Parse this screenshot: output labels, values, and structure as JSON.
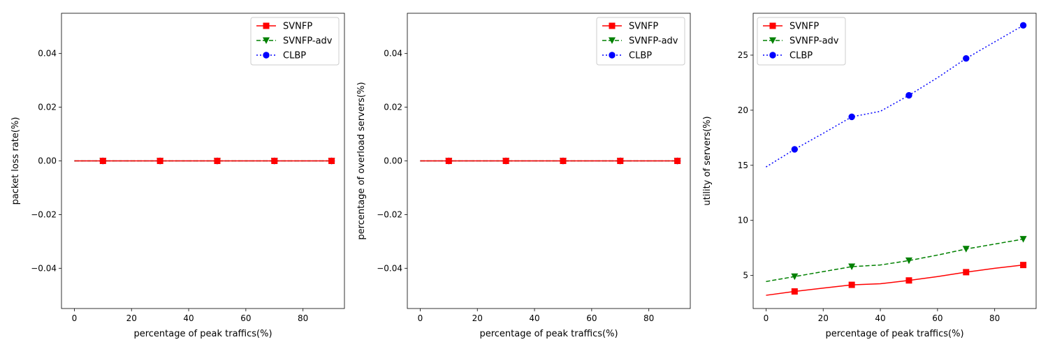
{
  "chart_data": [
    {
      "type": "line",
      "xlabel": "percentage of peak traffics(%)",
      "ylabel": "packet loss rate(%)",
      "xlim": [
        -4.5,
        94.5
      ],
      "ylim": [
        -0.055,
        0.055
      ],
      "xticks": [
        0,
        20,
        40,
        60,
        80
      ],
      "yticks": [
        -0.04,
        -0.02,
        0.0,
        0.02,
        0.04
      ],
      "ytick_labels": [
        "−0.04",
        "−0.02",
        "0.00",
        "0.02",
        "0.04"
      ],
      "legend_position": "upper right",
      "grid": false,
      "x": [
        0,
        10,
        20,
        30,
        40,
        50,
        60,
        70,
        80,
        90
      ],
      "series": [
        {
          "name": "SVNFP",
          "color": "#ff0000",
          "dash": "solid",
          "marker": "square",
          "values": [
            0,
            0,
            0,
            0,
            0,
            0,
            0,
            0,
            0,
            0
          ]
        },
        {
          "name": "SVNFP-adv",
          "color": "#008000",
          "dash": "dashed",
          "marker": "triangle-down",
          "values": [
            0,
            0,
            0,
            0,
            0,
            0,
            0,
            0,
            0,
            0
          ]
        },
        {
          "name": "CLBP",
          "color": "#0000ff",
          "dash": "dotted",
          "marker": "circle",
          "values": [
            0,
            0,
            0,
            0,
            0,
            0,
            0,
            0,
            0,
            0
          ]
        }
      ]
    },
    {
      "type": "line",
      "xlabel": "percentage of peak traffics(%)",
      "ylabel": "percentage of overload servers(%)",
      "xlim": [
        -4.5,
        94.5
      ],
      "ylim": [
        -0.055,
        0.055
      ],
      "xticks": [
        0,
        20,
        40,
        60,
        80
      ],
      "yticks": [
        -0.04,
        -0.02,
        0.0,
        0.02,
        0.04
      ],
      "ytick_labels": [
        "−0.04",
        "−0.02",
        "0.00",
        "0.02",
        "0.04"
      ],
      "legend_position": "upper right",
      "grid": false,
      "x": [
        0,
        10,
        20,
        30,
        40,
        50,
        60,
        70,
        80,
        90
      ],
      "series": [
        {
          "name": "SVNFP",
          "color": "#ff0000",
          "dash": "solid",
          "marker": "square",
          "values": [
            0,
            0,
            0,
            0,
            0,
            0,
            0,
            0,
            0,
            0
          ]
        },
        {
          "name": "SVNFP-adv",
          "color": "#008000",
          "dash": "dashed",
          "marker": "triangle-down",
          "values": [
            0,
            0,
            0,
            0,
            0,
            0,
            0,
            0,
            0,
            0
          ]
        },
        {
          "name": "CLBP",
          "color": "#0000ff",
          "dash": "dotted",
          "marker": "circle",
          "values": [
            0,
            0,
            0,
            0,
            0,
            0,
            0,
            0,
            0,
            0
          ]
        }
      ]
    },
    {
      "type": "line",
      "xlabel": "percentage of peak traffics(%)",
      "ylabel": "utility of servers(%)",
      "xlim": [
        -4.5,
        94.5
      ],
      "ylim": [
        2.0,
        28.8
      ],
      "xticks": [
        0,
        20,
        40,
        60,
        80
      ],
      "yticks": [
        5,
        10,
        15,
        20,
        25
      ],
      "ytick_labels": [
        "5",
        "10",
        "15",
        "20",
        "25"
      ],
      "legend_position": "upper left",
      "grid": false,
      "x": [
        0,
        10,
        20,
        30,
        40,
        50,
        60,
        70,
        80,
        90
      ],
      "series": [
        {
          "name": "SVNFP",
          "color": "#ff0000",
          "dash": "solid",
          "marker": "square",
          "values": [
            3.2,
            3.55,
            3.85,
            4.15,
            4.25,
            4.55,
            4.9,
            5.3,
            5.65,
            5.95
          ]
        },
        {
          "name": "SVNFP-adv",
          "color": "#008000",
          "dash": "dashed",
          "marker": "triangle-down",
          "values": [
            4.45,
            4.9,
            5.35,
            5.8,
            5.95,
            6.35,
            6.85,
            7.4,
            7.85,
            8.3
          ]
        },
        {
          "name": "CLBP",
          "color": "#0000ff",
          "dash": "dotted",
          "marker": "circle",
          "values": [
            14.85,
            16.45,
            17.9,
            19.4,
            19.9,
            21.35,
            22.95,
            24.7,
            26.2,
            27.7
          ]
        }
      ]
    }
  ]
}
